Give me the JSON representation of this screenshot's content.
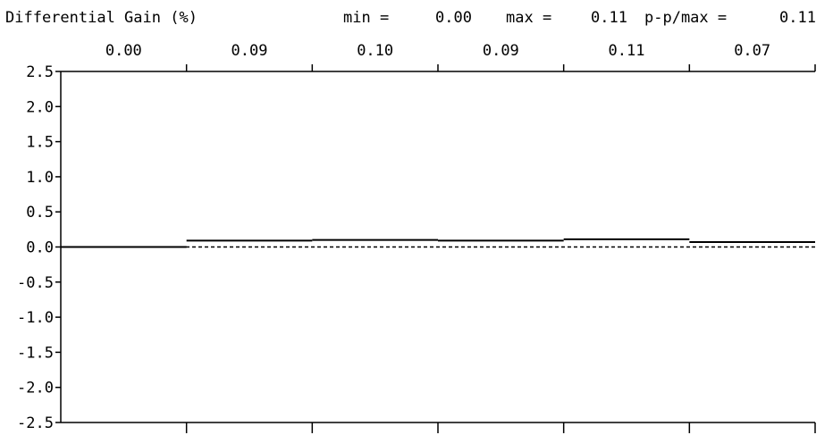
{
  "chart_data": {
    "type": "line",
    "title": "Differential Gain (%)",
    "stats": {
      "min_label": "min =",
      "min_value": "0.00",
      "max_label": "max =",
      "max_value": "0.11",
      "pp_label": "p-p/max =",
      "pp_value": "0.11"
    },
    "step_values": [
      0.0,
      0.09,
      0.1,
      0.09,
      0.11,
      0.07
    ],
    "step_labels": [
      "0.00",
      "0.09",
      "0.10",
      "0.09",
      "0.11",
      "0.07"
    ],
    "ylim": [
      -2.5,
      2.5
    ],
    "yticks": [
      "2.5",
      "2.0",
      "1.5",
      "1.0",
      "0.5",
      "0.0",
      "-0.5",
      "-1.0",
      "-1.5",
      "-2.0",
      "-2.5"
    ],
    "ytick_values": [
      2.5,
      2.0,
      1.5,
      1.0,
      0.5,
      0.0,
      -0.5,
      -1.0,
      -1.5,
      -2.0,
      -2.5
    ],
    "reference_value": 0.0,
    "grid": false,
    "xlabel": "",
    "ylabel": ""
  }
}
